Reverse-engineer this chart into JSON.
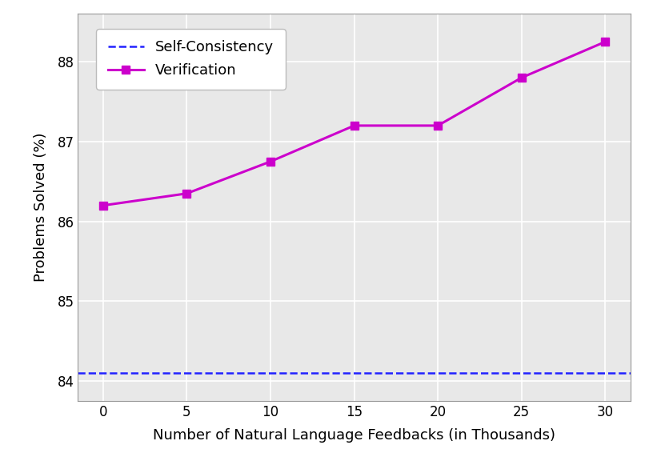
{
  "x_values": [
    0,
    5,
    10,
    15,
    20,
    25,
    30
  ],
  "verification_y": [
    86.2,
    86.35,
    86.75,
    87.2,
    87.2,
    87.8,
    88.25
  ],
  "self_consistency_y": 84.1,
  "xlabel": "Number of Natural Language Feedbacks (in Thousands)",
  "ylabel": "Problems Solved (%)",
  "legend_self_consistency": "Self-Consistency",
  "legend_verification": "Verification",
  "verification_color": "#CC00CC",
  "self_consistency_color": "#2222FF",
  "ylim_bottom": 83.75,
  "ylim_top": 88.6,
  "yticks": [
    84,
    85,
    86,
    87,
    88
  ],
  "xticks": [
    0,
    5,
    10,
    15,
    20,
    25,
    30
  ],
  "plot_bg_color": "#e8e8e8",
  "fig_bg_color": "#ffffff",
  "grid_color": "#ffffff"
}
